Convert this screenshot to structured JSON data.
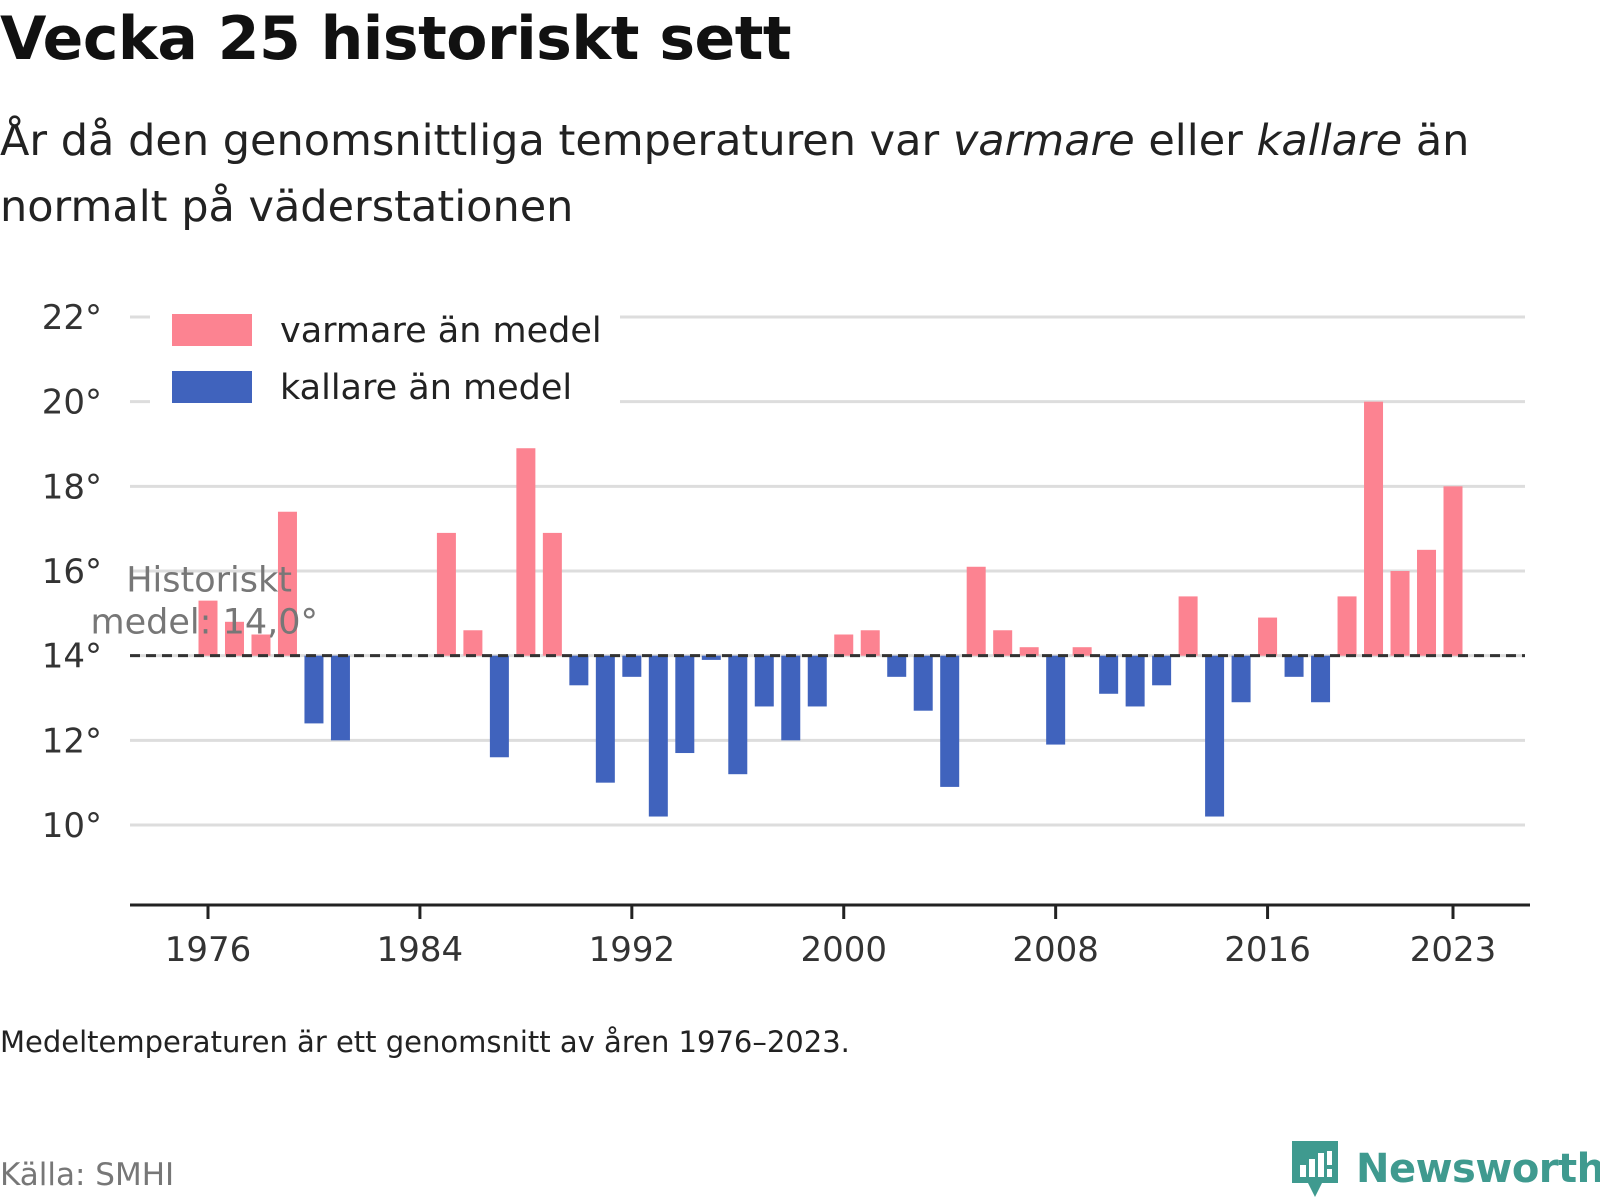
{
  "title": "Vecka 25 historiskt sett",
  "subtitle": {
    "part1": "År då den genomsnittliga temperaturen var ",
    "warm_word": "varmare",
    "part2": " eller ",
    "cold_word": "kallare",
    "part3": " än normalt på väderstationen"
  },
  "footnote": "Medeltemperaturen är ett genomsnitt av åren 1976–2023.",
  "source": "Källa: SMHI",
  "brand": {
    "name": "Newsworthy",
    "icon": "newsworthy-logo-icon",
    "color": "#3f9a8f"
  },
  "colors": {
    "warm": "#fc8391",
    "cold": "#4063bd",
    "grid": "#dddddd",
    "axis": "#222222",
    "mean_line": "#333333"
  },
  "chart_data": {
    "type": "bar",
    "baseline": 14.0,
    "baseline_label_line1": "Historiskt",
    "baseline_label_line2": "medel: 14,0°",
    "ylim": [
      8.6,
      22.4
    ],
    "yticks": [
      10,
      12,
      14,
      16,
      18,
      20,
      22
    ],
    "ytick_labels": [
      "10°",
      "12°",
      "14°",
      "16°",
      "18°",
      "20°",
      "22°"
    ],
    "xlim": [
      1973.2,
      2025.8
    ],
    "xticks": [
      1976,
      1984,
      1992,
      2000,
      2008,
      2016,
      2023
    ],
    "xtick_labels": [
      "1976",
      "1984",
      "1992",
      "2000",
      "2008",
      "2016",
      "2023"
    ],
    "legend": {
      "position": "top-left",
      "warm_label": "varmare än medel",
      "cold_label": "kallare än medel"
    },
    "x": [
      1976,
      1977,
      1978,
      1979,
      1980,
      1981,
      1982,
      1983,
      1984,
      1985,
      1986,
      1987,
      1988,
      1989,
      1990,
      1991,
      1992,
      1993,
      1994,
      1995,
      1996,
      1997,
      1998,
      1999,
      2000,
      2001,
      2002,
      2003,
      2004,
      2005,
      2006,
      2007,
      2008,
      2009,
      2010,
      2011,
      2012,
      2013,
      2014,
      2015,
      2016,
      2017,
      2018,
      2019,
      2020,
      2021,
      2022,
      2023
    ],
    "values": [
      15.3,
      14.8,
      14.5,
      17.4,
      12.4,
      12.0,
      14.0,
      14.0,
      14.0,
      16.9,
      14.6,
      11.6,
      18.9,
      16.9,
      13.3,
      11.0,
      13.5,
      10.2,
      11.7,
      13.9,
      11.2,
      12.8,
      12.0,
      12.8,
      14.5,
      14.6,
      13.5,
      12.7,
      10.9,
      16.1,
      14.6,
      14.2,
      11.9,
      14.2,
      13.1,
      12.8,
      13.3,
      15.4,
      10.2,
      12.9,
      14.9,
      13.5,
      12.9,
      15.4,
      20.0,
      16.0,
      16.5,
      18.0
    ]
  }
}
